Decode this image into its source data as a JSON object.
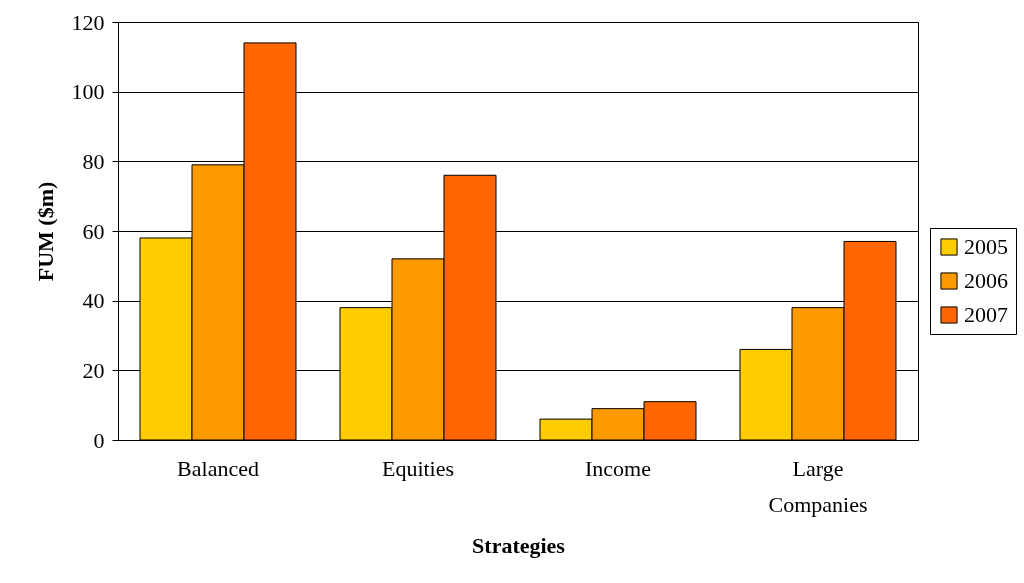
{
  "chart_data": {
    "type": "bar",
    "xlabel": "Strategies",
    "ylabel": "FUM ($m)",
    "categories": [
      "Balanced",
      "Equities",
      "Income",
      "Large Companies"
    ],
    "series": [
      {
        "name": "2005",
        "color": "#ffcc00",
        "values": [
          58,
          38,
          6,
          26
        ]
      },
      {
        "name": "2006",
        "color": "#ff9900",
        "values": [
          79,
          52,
          9,
          38
        ]
      },
      {
        "name": "2007",
        "color": "#ff6600",
        "values": [
          114,
          76,
          11,
          57
        ]
      }
    ],
    "ylim": [
      0,
      120
    ],
    "yticks": [
      0,
      20,
      40,
      60,
      80,
      100,
      120
    ],
    "grid": "y",
    "legend": "right"
  }
}
